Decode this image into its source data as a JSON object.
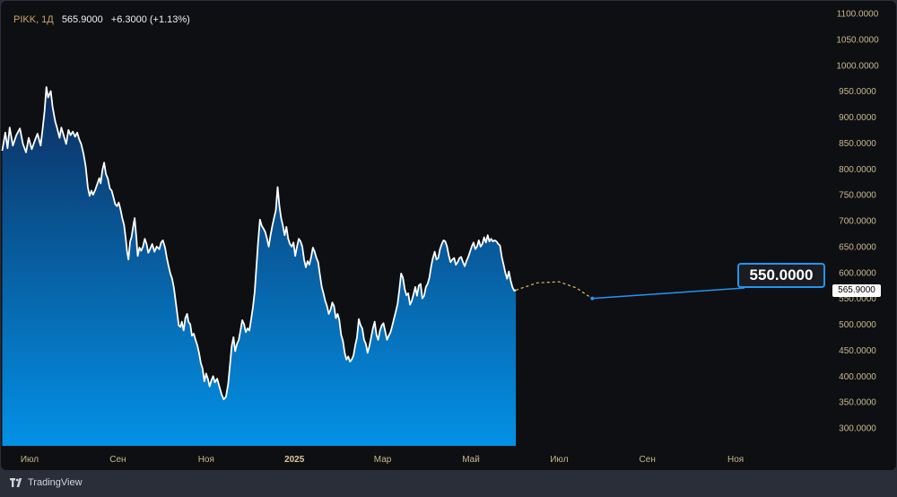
{
  "header": {
    "ticker": "PIKK, 1Д",
    "price": "565.9000",
    "change": "+6.3000 (+1.13%)"
  },
  "brand": {
    "label": "TradingView",
    "icon": "tradingview-logo-icon"
  },
  "target": {
    "label": "550.0000",
    "value": 550.0
  },
  "last_price": {
    "label": "565.9000",
    "value": 565.9
  },
  "colors": {
    "background": "#0e0f13",
    "line": "#ffffff",
    "area_top": "#0d2d5e",
    "area_bottom": "#0391e6",
    "axis_text": "#c8b98a",
    "accent": "#2196f3",
    "forecast": "#e8c65a"
  },
  "chart_data": {
    "type": "area",
    "title": "",
    "xlabel": "",
    "ylabel": "",
    "ylim": [
      280,
      1100
    ],
    "y_ticks": [
      "1100.0000",
      "1050.0000",
      "1000.0000",
      "950.0000",
      "900.0000",
      "850.0000",
      "800.0000",
      "750.0000",
      "700.0000",
      "650.0000",
      "600.0000",
      "550.0000",
      "500.0000",
      "450.0000",
      "400.0000",
      "350.0000",
      "300.0000"
    ],
    "x_ticks": [
      {
        "label": "Июл",
        "month": 0,
        "bold": false
      },
      {
        "label": "Сен",
        "month": 2,
        "bold": false
      },
      {
        "label": "Ноя",
        "month": 4,
        "bold": false
      },
      {
        "label": "2025",
        "month": 6,
        "bold": true
      },
      {
        "label": "Мар",
        "month": 8,
        "bold": false
      },
      {
        "label": "Май",
        "month": 10,
        "bold": false
      },
      {
        "label": "Июл",
        "month": 12,
        "bold": false
      },
      {
        "label": "Сен",
        "month": 14,
        "bold": false
      },
      {
        "label": "Ноя",
        "month": 16,
        "bold": false
      }
    ],
    "x_range_months": [
      -0.65,
      18.05
    ],
    "series": [
      {
        "values": [
          [
            -0.62,
            835
          ],
          [
            -0.55,
            870
          ],
          [
            -0.5,
            840
          ],
          [
            -0.45,
            880
          ],
          [
            -0.38,
            845
          ],
          [
            -0.3,
            865
          ],
          [
            -0.22,
            878
          ],
          [
            -0.15,
            848
          ],
          [
            -0.08,
            832
          ],
          [
            -0.02,
            860
          ],
          [
            0.05,
            838
          ],
          [
            0.12,
            855
          ],
          [
            0.18,
            868
          ],
          [
            0.25,
            845
          ],
          [
            0.3,
            880
          ],
          [
            0.34,
            912
          ],
          [
            0.38,
            958
          ],
          [
            0.42,
            938
          ],
          [
            0.48,
            950
          ],
          [
            0.52,
            920
          ],
          [
            0.58,
            892
          ],
          [
            0.62,
            880
          ],
          [
            0.68,
            860
          ],
          [
            0.72,
            880
          ],
          [
            0.78,
            862
          ],
          [
            0.83,
            848
          ],
          [
            0.88,
            875
          ],
          [
            0.93,
            865
          ],
          [
            0.98,
            872
          ],
          [
            1.03,
            862
          ],
          [
            1.08,
            870
          ],
          [
            1.12,
            858
          ],
          [
            1.17,
            848
          ],
          [
            1.22,
            830
          ],
          [
            1.27,
            805
          ],
          [
            1.32,
            765
          ],
          [
            1.36,
            748
          ],
          [
            1.4,
            758
          ],
          [
            1.44,
            750
          ],
          [
            1.49,
            760
          ],
          [
            1.53,
            770
          ],
          [
            1.58,
            782
          ],
          [
            1.61,
            772
          ],
          [
            1.65,
            798
          ],
          [
            1.69,
            812
          ],
          [
            1.73,
            790
          ],
          [
            1.77,
            782
          ],
          [
            1.82,
            762
          ],
          [
            1.86,
            758
          ],
          [
            1.9,
            745
          ],
          [
            1.94,
            732
          ],
          [
            1.98,
            728
          ],
          [
            2.02,
            735
          ],
          [
            2.06,
            722
          ],
          [
            2.1,
            705
          ],
          [
            2.14,
            692
          ],
          [
            2.18,
            665
          ],
          [
            2.21,
            640
          ],
          [
            2.24,
            625
          ],
          [
            2.28,
            660
          ],
          [
            2.31,
            668
          ],
          [
            2.35,
            690
          ],
          [
            2.38,
            705
          ],
          [
            2.42,
            668
          ],
          [
            2.45,
            632
          ],
          [
            2.49,
            648
          ],
          [
            2.53,
            642
          ],
          [
            2.57,
            650
          ],
          [
            2.61,
            665
          ],
          [
            2.65,
            655
          ],
          [
            2.69,
            638
          ],
          [
            2.73,
            645
          ],
          [
            2.78,
            655
          ],
          [
            2.83,
            640
          ],
          [
            2.88,
            650
          ],
          [
            2.94,
            645
          ],
          [
            2.98,
            658
          ],
          [
            3.02,
            662
          ],
          [
            3.07,
            648
          ],
          [
            3.11,
            628
          ],
          [
            3.15,
            612
          ],
          [
            3.19,
            598
          ],
          [
            3.23,
            588
          ],
          [
            3.27,
            570
          ],
          [
            3.31,
            545
          ],
          [
            3.35,
            518
          ],
          [
            3.38,
            498
          ],
          [
            3.42,
            495
          ],
          [
            3.45,
            505
          ],
          [
            3.49,
            488
          ],
          [
            3.53,
            512
          ],
          [
            3.57,
            520
          ],
          [
            3.6,
            505
          ],
          [
            3.64,
            500
          ],
          [
            3.68,
            478
          ],
          [
            3.72,
            482
          ],
          [
            3.76,
            470
          ],
          [
            3.8,
            460
          ],
          [
            3.84,
            445
          ],
          [
            3.88,
            425
          ],
          [
            3.92,
            415
          ],
          [
            3.96,
            390
          ],
          [
            4,
            405
          ],
          [
            4.04,
            395
          ],
          [
            4.08,
            380
          ],
          [
            4.12,
            392
          ],
          [
            4.16,
            400
          ],
          [
            4.2,
            388
          ],
          [
            4.25,
            395
          ],
          [
            4.3,
            380
          ],
          [
            4.35,
            365
          ],
          [
            4.4,
            355
          ],
          [
            4.45,
            360
          ],
          [
            4.5,
            385
          ],
          [
            4.54,
            420
          ],
          [
            4.58,
            458
          ],
          [
            4.62,
            475
          ],
          [
            4.66,
            448
          ],
          [
            4.7,
            462
          ],
          [
            4.74,
            470
          ],
          [
            4.78,
            488
          ],
          [
            4.82,
            508
          ],
          [
            4.86,
            500
          ],
          [
            4.9,
            485
          ],
          [
            4.94,
            492
          ],
          [
            4.98,
            488
          ],
          [
            5.02,
            510
          ],
          [
            5.06,
            532
          ],
          [
            5.1,
            562
          ],
          [
            5.14,
            612
          ],
          [
            5.18,
            660
          ],
          [
            5.22,
            702
          ],
          [
            5.26,
            690
          ],
          [
            5.3,
            685
          ],
          [
            5.34,
            678
          ],
          [
            5.38,
            665
          ],
          [
            5.42,
            650
          ],
          [
            5.46,
            672
          ],
          [
            5.5,
            690
          ],
          [
            5.54,
            705
          ],
          [
            5.58,
            720
          ],
          [
            5.62,
            765
          ],
          [
            5.66,
            730
          ],
          [
            5.7,
            705
          ],
          [
            5.74,
            690
          ],
          [
            5.78,
            672
          ],
          [
            5.82,
            688
          ],
          [
            5.86,
            665
          ],
          [
            5.9,
            655
          ],
          [
            5.94,
            650
          ],
          [
            5.98,
            658
          ],
          [
            6.02,
            632
          ],
          [
            6.06,
            650
          ],
          [
            6.1,
            665
          ],
          [
            6.14,
            660
          ],
          [
            6.18,
            650
          ],
          [
            6.22,
            625
          ],
          [
            6.26,
            610
          ],
          [
            6.3,
            622
          ],
          [
            6.34,
            615
          ],
          [
            6.38,
            630
          ],
          [
            6.42,
            648
          ],
          [
            6.46,
            640
          ],
          [
            6.5,
            628
          ],
          [
            6.54,
            620
          ],
          [
            6.58,
            595
          ],
          [
            6.62,
            572
          ],
          [
            6.66,
            560
          ],
          [
            6.7,
            545
          ],
          [
            6.74,
            535
          ],
          [
            6.78,
            520
          ],
          [
            6.82,
            528
          ],
          [
            6.86,
            542
          ],
          [
            6.9,
            535
          ],
          [
            6.94,
            512
          ],
          [
            6.98,
            520
          ],
          [
            7.02,
            508
          ],
          [
            7.06,
            480
          ],
          [
            7.1,
            468
          ],
          [
            7.14,
            445
          ],
          [
            7.18,
            432
          ],
          [
            7.22,
            438
          ],
          [
            7.26,
            428
          ],
          [
            7.3,
            432
          ],
          [
            7.34,
            440
          ],
          [
            7.38,
            460
          ],
          [
            7.42,
            475
          ],
          [
            7.46,
            510
          ],
          [
            7.5,
            498
          ],
          [
            7.54,
            492
          ],
          [
            7.58,
            470
          ],
          [
            7.62,
            462
          ],
          [
            7.66,
            445
          ],
          [
            7.7,
            458
          ],
          [
            7.74,
            475
          ],
          [
            7.78,
            492
          ],
          [
            7.82,
            505
          ],
          [
            7.86,
            480
          ],
          [
            7.9,
            470
          ],
          [
            7.94,
            488
          ],
          [
            7.98,
            498
          ],
          [
            8.02,
            502
          ],
          [
            8.06,
            486
          ],
          [
            8.1,
            470
          ],
          [
            8.14,
            478
          ],
          [
            8.18,
            485
          ],
          [
            8.22,
            498
          ],
          [
            8.26,
            512
          ],
          [
            8.3,
            525
          ],
          [
            8.34,
            540
          ],
          [
            8.38,
            568
          ],
          [
            8.42,
            598
          ],
          [
            8.46,
            590
          ],
          [
            8.5,
            568
          ],
          [
            8.54,
            556
          ],
          [
            8.58,
            560
          ],
          [
            8.62,
            538
          ],
          [
            8.66,
            545
          ],
          [
            8.7,
            558
          ],
          [
            8.74,
            572
          ],
          [
            8.78,
            555
          ],
          [
            8.82,
            575
          ],
          [
            8.86,
            578
          ],
          [
            8.9,
            550
          ],
          [
            8.94,
            555
          ],
          [
            8.98,
            572
          ],
          [
            9.02,
            578
          ],
          [
            9.06,
            590
          ],
          [
            9.1,
            612
          ],
          [
            9.14,
            628
          ],
          [
            9.18,
            640
          ],
          [
            9.22,
            625
          ],
          [
            9.26,
            628
          ],
          [
            9.3,
            645
          ],
          [
            9.34,
            655
          ],
          [
            9.38,
            662
          ],
          [
            9.42,
            660
          ],
          [
            9.46,
            650
          ],
          [
            9.5,
            632
          ],
          [
            9.54,
            620
          ],
          [
            9.58,
            625
          ],
          [
            9.62,
            628
          ],
          [
            9.66,
            615
          ],
          [
            9.7,
            620
          ],
          [
            9.74,
            628
          ],
          [
            9.78,
            630
          ],
          [
            9.82,
            620
          ],
          [
            9.86,
            612
          ],
          [
            9.9,
            622
          ],
          [
            9.94,
            630
          ],
          [
            9.98,
            640
          ],
          [
            10.02,
            650
          ],
          [
            10.06,
            658
          ],
          [
            10.1,
            645
          ],
          [
            10.14,
            650
          ],
          [
            10.18,
            662
          ],
          [
            10.22,
            650
          ],
          [
            10.26,
            655
          ],
          [
            10.3,
            668
          ],
          [
            10.34,
            658
          ],
          [
            10.38,
            672
          ],
          [
            10.42,
            660
          ],
          [
            10.46,
            665
          ],
          [
            10.5,
            660
          ],
          [
            10.54,
            662
          ],
          [
            10.58,
            660
          ],
          [
            10.62,
            655
          ],
          [
            10.66,
            652
          ],
          [
            10.7,
            630
          ],
          [
            10.74,
            615
          ],
          [
            10.78,
            600
          ],
          [
            10.82,
            588
          ],
          [
            10.86,
            602
          ],
          [
            10.9,
            585
          ],
          [
            10.94,
            572
          ],
          [
            10.98,
            565
          ],
          [
            11.02,
            566
          ]
        ]
      }
    ],
    "forecast_curve": [
      [
        11.02,
        566
      ],
      [
        11.5,
        580
      ],
      [
        12.0,
        582
      ],
      [
        12.4,
        570
      ],
      [
        12.6,
        558
      ],
      [
        12.75,
        550
      ]
    ]
  }
}
